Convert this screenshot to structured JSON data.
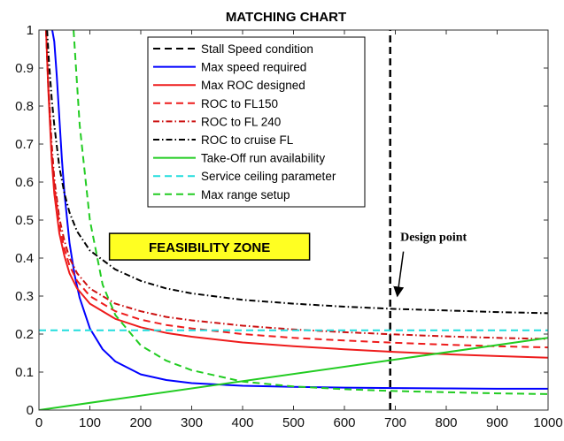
{
  "chart_data": {
    "type": "line",
    "title": "MATCHING CHART",
    "xlabel": "",
    "ylabel": "",
    "xlim": [
      0,
      1000
    ],
    "ylim": [
      0,
      1
    ],
    "xticks": [
      0,
      100,
      200,
      300,
      400,
      500,
      600,
      700,
      800,
      900,
      1000
    ],
    "yticks": [
      0,
      0.1,
      0.2,
      0.3,
      0.4,
      0.5,
      0.6,
      0.7,
      0.8,
      0.9,
      1
    ],
    "xtick_labels": [
      "0",
      "100",
      "200",
      "300",
      "400",
      "500",
      "600",
      "700",
      "800",
      "900",
      "1000"
    ],
    "ytick_labels": [
      "0",
      "0.1",
      "0.2",
      "0.3",
      "0.4",
      "0.5",
      "0.6",
      "0.7",
      "0.8",
      "0.9",
      "1"
    ],
    "grid": false,
    "legend_position": "top-center",
    "series": [
      {
        "name": "Stall Speed condition",
        "color": "#000000",
        "dash": "dashed",
        "x": [
          690,
          690
        ],
        "y": [
          0,
          1
        ]
      },
      {
        "name": "Max speed required",
        "color": "#0000ff",
        "dash": "solid",
        "x": [
          26,
          30,
          35,
          40,
          45,
          50,
          60,
          70,
          80,
          100,
          125,
          150,
          200,
          250,
          300,
          400,
          500,
          600,
          700,
          800,
          900,
          1000
        ],
        "y": [
          1.0,
          0.97,
          0.88,
          0.77,
          0.66,
          0.57,
          0.44,
          0.355,
          0.295,
          0.215,
          0.16,
          0.128,
          0.094,
          0.079,
          0.071,
          0.064,
          0.061,
          0.059,
          0.058,
          0.057,
          0.056,
          0.056
        ]
      },
      {
        "name": "Max ROC designed",
        "color": "#ee1c1c",
        "dash": "solid",
        "x": [
          14,
          18,
          25,
          30,
          40,
          50,
          60,
          75,
          100,
          150,
          200,
          250,
          300,
          400,
          500,
          600,
          700,
          800,
          900,
          1000
        ],
        "y": [
          1.0,
          0.85,
          0.66,
          0.57,
          0.465,
          0.405,
          0.36,
          0.32,
          0.28,
          0.24,
          0.218,
          0.203,
          0.193,
          0.178,
          0.168,
          0.16,
          0.153,
          0.147,
          0.142,
          0.138
        ]
      },
      {
        "name": "ROC to FL150",
        "color": "#ee1c1c",
        "dash": "dashed",
        "x": [
          14,
          18,
          25,
          30,
          40,
          50,
          60,
          75,
          100,
          150,
          200,
          250,
          300,
          400,
          500,
          600,
          700,
          800,
          900,
          1000
        ],
        "y": [
          1.0,
          0.86,
          0.68,
          0.59,
          0.485,
          0.425,
          0.38,
          0.34,
          0.3,
          0.26,
          0.238,
          0.224,
          0.215,
          0.2,
          0.19,
          0.183,
          0.177,
          0.172,
          0.168,
          0.165
        ]
      },
      {
        "name": "ROC to FL 240",
        "color": "#cc1111",
        "dash": "dashdot",
        "x": [
          14,
          18,
          25,
          30,
          40,
          50,
          60,
          75,
          100,
          150,
          200,
          250,
          300,
          400,
          500,
          600,
          700,
          800,
          900,
          1000
        ],
        "y": [
          1.0,
          0.87,
          0.7,
          0.61,
          0.505,
          0.445,
          0.4,
          0.36,
          0.32,
          0.28,
          0.26,
          0.245,
          0.236,
          0.222,
          0.212,
          0.205,
          0.199,
          0.194,
          0.19,
          0.187
        ]
      },
      {
        "name": "ROC to cruise FL",
        "color": "#000000",
        "dash": "dashdot",
        "x": [
          16,
          20,
          25,
          30,
          40,
          50,
          60,
          75,
          100,
          150,
          200,
          250,
          300,
          400,
          500,
          600,
          700,
          800,
          900,
          1000
        ],
        "y": [
          1.0,
          0.91,
          0.82,
          0.75,
          0.64,
          0.57,
          0.52,
          0.47,
          0.42,
          0.37,
          0.34,
          0.32,
          0.307,
          0.29,
          0.28,
          0.272,
          0.266,
          0.262,
          0.258,
          0.255
        ]
      },
      {
        "name": "Take-Off run availability",
        "color": "#22cc22",
        "dash": "solid",
        "x": [
          0,
          1000
        ],
        "y": [
          0,
          0.19
        ]
      },
      {
        "name": "Service ceiling parameter",
        "color": "#22dddd",
        "dash": "dashed",
        "x": [
          0,
          1000
        ],
        "y": [
          0.21,
          0.21
        ]
      },
      {
        "name": "Max range setup",
        "color": "#22cc22",
        "dash": "dashed",
        "x": [
          68,
          80,
          100,
          125,
          150,
          200,
          250,
          300,
          400,
          500,
          600,
          700,
          800,
          900,
          1000
        ],
        "y": [
          1.0,
          0.75,
          0.5,
          0.33,
          0.25,
          0.17,
          0.13,
          0.105,
          0.075,
          0.062,
          0.055,
          0.05,
          0.047,
          0.044,
          0.042
        ]
      }
    ],
    "annotations": [
      {
        "text": "FEASIBILITY ZONE",
        "x": 335,
        "y": 0.43,
        "style": "boxed",
        "bg": "#ffff22"
      },
      {
        "text": "Design point",
        "x": 775,
        "y": 0.445,
        "arrow_to": [
          690,
          0.295
        ],
        "style": "serif-bold"
      }
    ]
  }
}
